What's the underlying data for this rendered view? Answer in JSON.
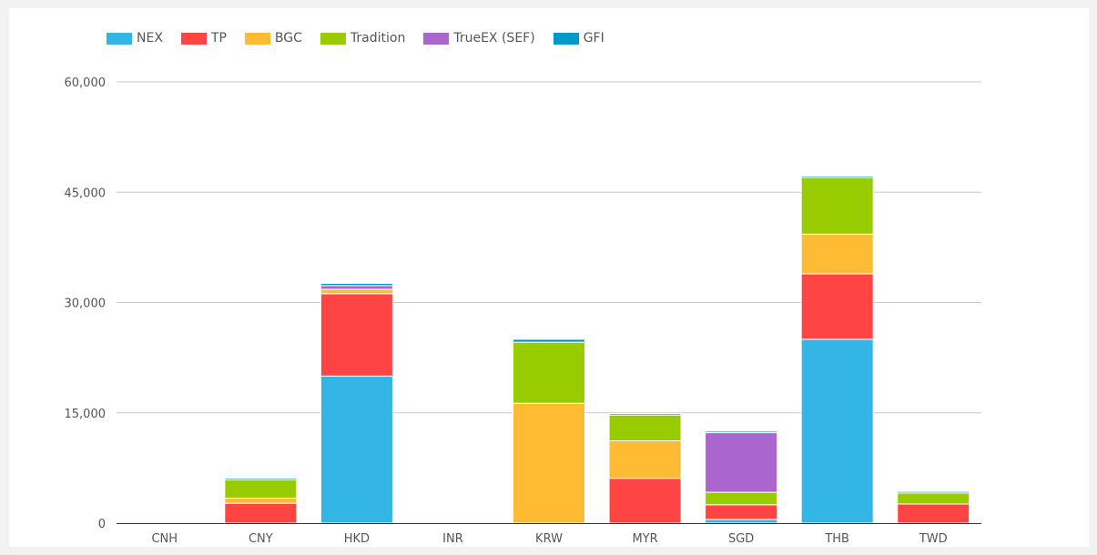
{
  "chart_data": {
    "type": "bar",
    "stacked": true,
    "categories": [
      "CNH",
      "CNY",
      "HKD",
      "INR",
      "KRW",
      "MYR",
      "SGD",
      "THB",
      "TWD"
    ],
    "series": [
      {
        "name": "NEX",
        "color": "#33b5e5",
        "values": [
          0,
          0,
          20000,
          0,
          0,
          0,
          500,
          25000,
          0
        ]
      },
      {
        "name": "TP",
        "color": "#ff4444",
        "values": [
          60,
          2700,
          11200,
          60,
          0,
          6100,
          2000,
          8900,
          2600
        ]
      },
      {
        "name": "BGC",
        "color": "#ffbb33",
        "values": [
          0,
          700,
          600,
          0,
          16300,
          5100,
          0,
          5400,
          0
        ]
      },
      {
        "name": "Tradition",
        "color": "#99cc00",
        "values": [
          0,
          2500,
          0,
          0,
          8300,
          3500,
          1700,
          7700,
          1500
        ]
      },
      {
        "name": "TrueEX (SEF)",
        "color": "#aa66cc",
        "values": [
          0,
          0,
          500,
          0,
          0,
          0,
          8100,
          0,
          0
        ]
      },
      {
        "name": "GFI",
        "color": "#0099cc",
        "values": [
          40,
          200,
          300,
          40,
          400,
          200,
          200,
          200,
          200
        ]
      }
    ],
    "ylim": [
      0,
      60000
    ],
    "yticks": [
      "0",
      "15,000",
      "30,000",
      "45,000",
      "60,000"
    ],
    "ytick_values": [
      0,
      15000,
      30000,
      45000,
      60000
    ],
    "legend_position": "top-left",
    "grid": true
  }
}
